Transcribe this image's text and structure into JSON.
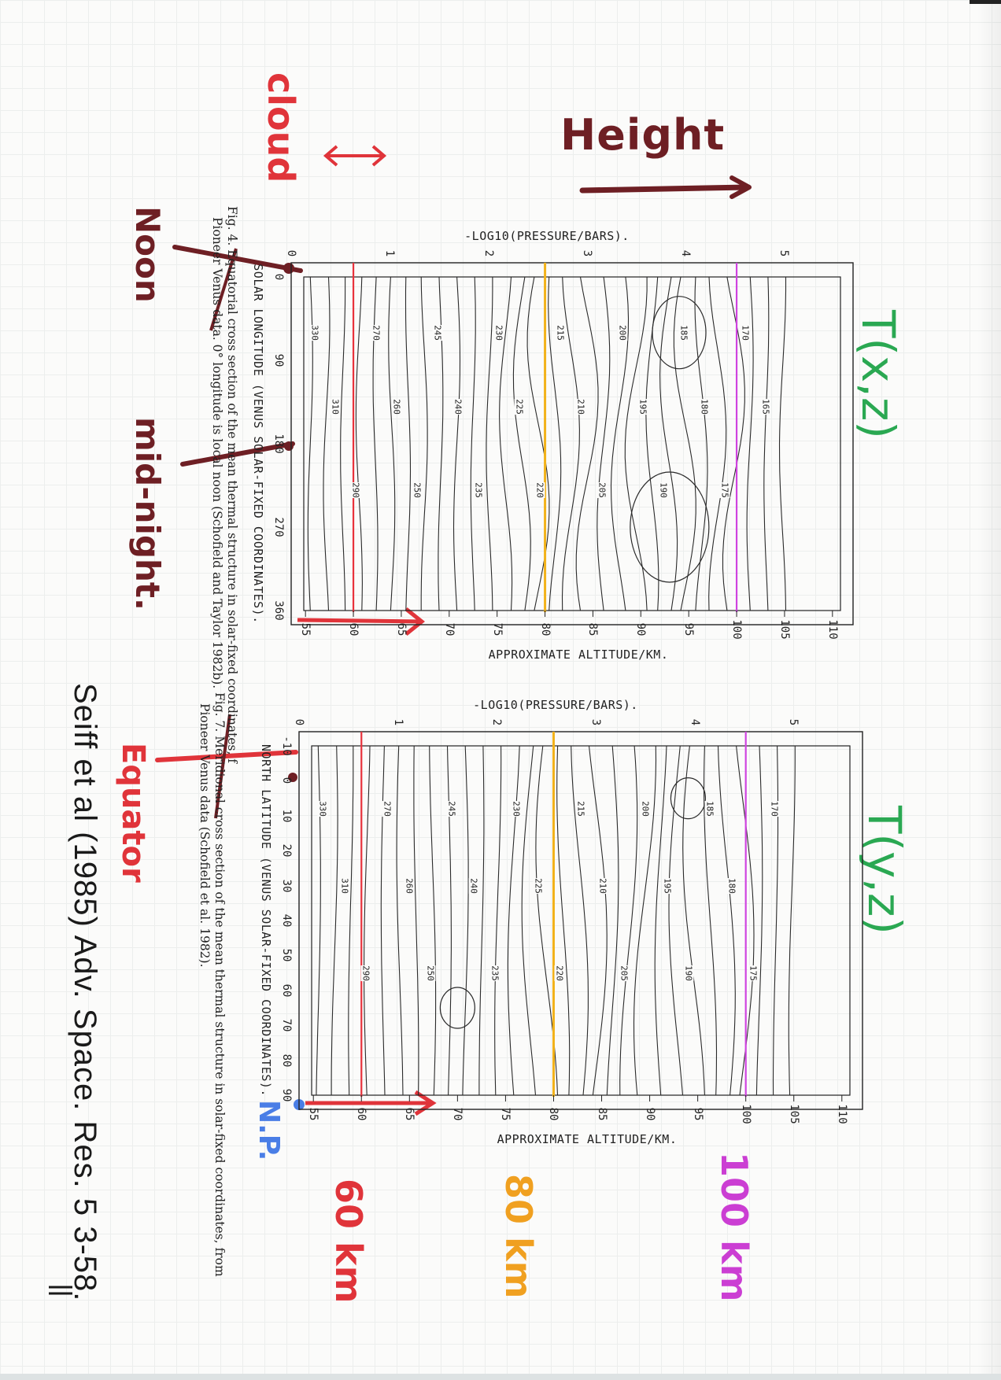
{
  "annotations": {
    "height": "Height",
    "cloud": "cloud",
    "noon": "Noon",
    "mid_night": "mid-night.",
    "t_xz": "T(x,z)",
    "t_yz": "T(y,z)",
    "equator": "Equator",
    "np": "N.P.",
    "km60": "60 km",
    "km80": "80 km",
    "km100": "100 km",
    "reference": "Seiff et al (1985) Adv. Space. Res. 5 3-58."
  },
  "colors": {
    "red_line": "#e8323c",
    "yellow_line": "#f2b21a",
    "magenta_line": "#cf44e0",
    "dark_red_marker": "#6e1f24",
    "green": "#2aa852",
    "blue": "#4a7ee6"
  },
  "figures": [
    {
      "id": "fig4",
      "caption_line1": "Fig. 4. Equatorial cross section of the mean thermal structure in solar-fixed coordinates, f",
      "caption_line2": "Pioneer Venus data. 0° longitude is local noon (Schofield and Taylor 1982b).",
      "xlabel": "SOLAR LONGITUDE (VENUS SOLAR-FIXED COORDINATES).",
      "pressure_label": "-LOG10(PRESSURE/BARS).",
      "altitude_label": "APPROXIMATE ALTITUDE/KM.",
      "longitude_ticks": [
        "0",
        "90",
        "180",
        "270",
        "360"
      ],
      "pressure_ticks": [
        "0",
        "1",
        "2",
        "3",
        "4",
        "5"
      ],
      "altitude_ticks": [
        "55",
        "60",
        "65",
        "70",
        "75",
        "80",
        "85",
        "90",
        "95",
        "100",
        "105",
        "110"
      ]
    },
    {
      "id": "fig7",
      "caption_line1": "Fig. 7. Meridional cross section of the mean thermal structure in solar-fixed coordinates, from",
      "caption_line2": "Pioneer Venus data (Schofield et al. 1982).",
      "xlabel": "NORTH LATITUDE (VENUS SOLAR-FIXED COORDINATES).",
      "pressure_label": "-LOG10(PRESSURE/BARS).",
      "altitude_label": "APPROXIMATE ALTITUDE/KM.",
      "latitude_ticks": [
        "-10",
        "0",
        "10",
        "20",
        "30",
        "40",
        "50",
        "60",
        "70",
        "80",
        "90"
      ],
      "pressure_ticks": [
        "0",
        "1",
        "2",
        "3",
        "4",
        "5"
      ],
      "altitude_ticks": [
        "55",
        "60",
        "65",
        "70",
        "75",
        "80",
        "85",
        "90",
        "95",
        "100",
        "105",
        "110"
      ]
    }
  ],
  "chart_data": [
    {
      "type": "contour",
      "xlabel": "SOLAR LONGITUDE (VENUS SOLAR-FIXED COORDINATES).",
      "ylabel": "APPROXIMATE ALTITUDE/KM.",
      "y2label": "-LOG10(PRESSURE/BARS).",
      "xlim": [
        0,
        360
      ],
      "ylim": [
        54,
        111
      ],
      "y2lim": [
        0,
        5
      ],
      "contour_labels": [
        "330",
        "310",
        "290",
        "270",
        "260",
        "250",
        "245",
        "240",
        "235",
        "230",
        "225",
        "220",
        "215",
        "210",
        "205",
        "200",
        "195",
        "190",
        "185",
        "180",
        "175",
        "170",
        "165"
      ],
      "reference_lines_km": [
        60,
        80,
        100
      ],
      "grid": false
    },
    {
      "type": "contour",
      "xlabel": "NORTH LATITUDE (VENUS SOLAR-FIXED COORDINATES).",
      "ylabel": "APPROXIMATE ALTITUDE/KM.",
      "y2label": "-LOG10(PRESSURE/BARS).",
      "xlim": [
        -10,
        90
      ],
      "ylim": [
        54,
        111
      ],
      "y2lim": [
        0,
        5
      ],
      "contour_labels": [
        "330",
        "310",
        "290",
        "270",
        "260",
        "250",
        "245",
        "240",
        "235",
        "230",
        "225",
        "220",
        "215",
        "210",
        "205",
        "200",
        "195",
        "190",
        "185",
        "180",
        "175",
        "170"
      ],
      "reference_lines_km": [
        60,
        80,
        100
      ],
      "grid": false
    }
  ]
}
